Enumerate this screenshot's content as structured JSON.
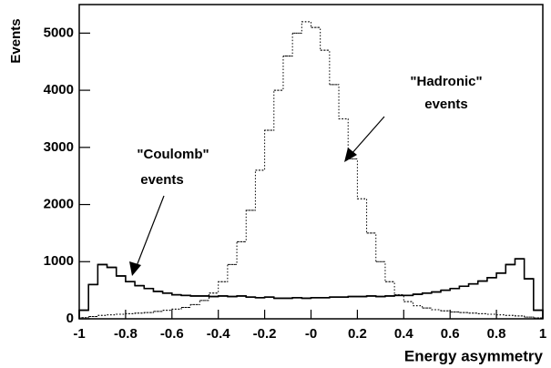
{
  "chart_data": {
    "type": "histogram",
    "x_label": "Energy asymmetry",
    "y_label": "Events",
    "annotations": [
      "\"Hadronic\"",
      "events",
      "\"Coulomb\"",
      "events"
    ],
    "bins": [
      -1,
      -0.96,
      -0.92,
      -0.88,
      -0.84,
      -0.8,
      -0.76,
      -0.72,
      -0.68,
      -0.64,
      -0.6,
      -0.56,
      -0.52,
      -0.48,
      -0.44,
      -0.4,
      -0.36,
      -0.32,
      -0.28,
      -0.24,
      -0.2,
      -0.16,
      -0.12,
      -0.08,
      -0.04,
      0,
      0.04,
      0.08,
      0.12,
      0.16,
      0.2,
      0.24,
      0.28,
      0.32,
      0.36,
      0.4,
      0.44,
      0.48,
      0.52,
      0.56,
      0.6,
      0.64,
      0.68,
      0.72,
      0.76,
      0.8,
      0.84,
      0.88,
      0.92,
      0.96,
      1
    ],
    "series": [
      {
        "style": "solid",
        "color": "#000000",
        "values": [
          150,
          600,
          950,
          900,
          750,
          650,
          580,
          530,
          480,
          450,
          420,
          410,
          400,
          400,
          390,
          400,
          390,
          400,
          380,
          370,
          380,
          360,
          360,
          370,
          360,
          370,
          370,
          380,
          380,
          390,
          390,
          400,
          390,
          400,
          410,
          410,
          430,
          450,
          470,
          500,
          530,
          570,
          610,
          660,
          720,
          800,
          950,
          1050,
          700,
          150
        ]
      },
      {
        "style": "dotted",
        "color": "#000000",
        "values": [
          20,
          40,
          60,
          70,
          80,
          90,
          100,
          110,
          130,
          150,
          170,
          200,
          250,
          320,
          450,
          650,
          950,
          1350,
          1900,
          2600,
          3300,
          4000,
          4600,
          5000,
          5200,
          5100,
          4700,
          4100,
          3500,
          2800,
          2100,
          1500,
          1000,
          650,
          420,
          300,
          230,
          190,
          160,
          140,
          120,
          110,
          100,
          90,
          80,
          70,
          60,
          50,
          30,
          15
        ]
      }
    ],
    "xlim": [
      -1,
      1
    ],
    "xticks": [
      -1,
      -0.8,
      -0.6,
      -0.4,
      -0.2,
      {
        "value": 0,
        "label": "-0"
      },
      0.2,
      0.4,
      0.6,
      0.8,
      1
    ],
    "ylim": [
      0,
      5500
    ],
    "yticks": [
      0,
      1000,
      2000,
      3000,
      4000,
      5000
    ]
  }
}
